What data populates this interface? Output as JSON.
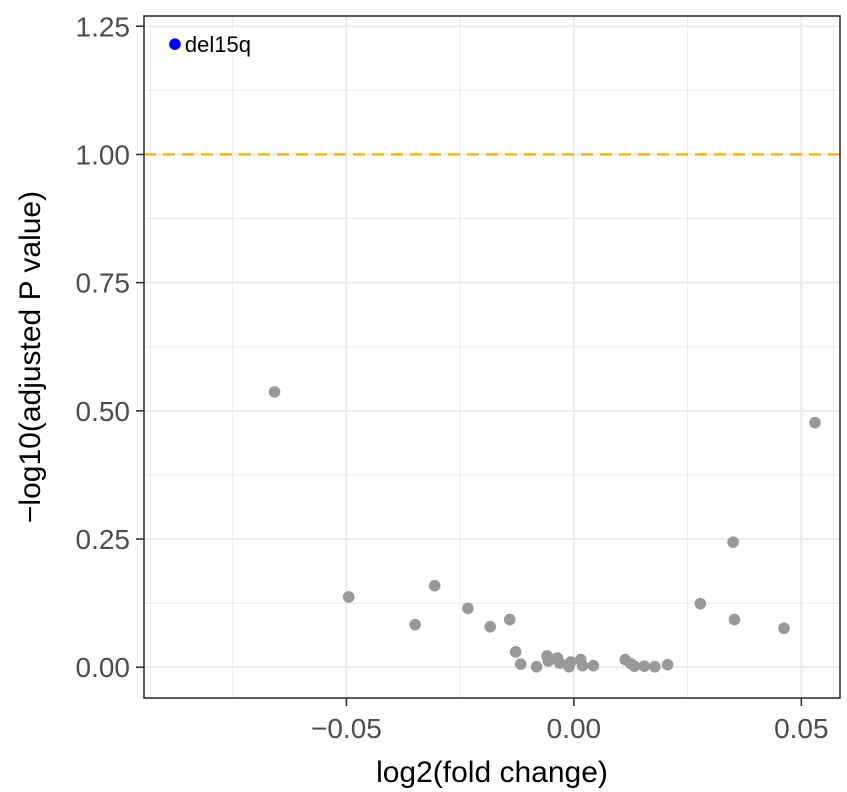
{
  "chart_data": {
    "type": "scatter",
    "title": "",
    "xlabel": "log2(fold change)",
    "ylabel": "−log10(adjusted P value)",
    "xlim": [
      -0.0945,
      0.0585
    ],
    "ylim": [
      -0.06,
      1.27
    ],
    "x_ticks": [
      -0.05,
      0.0,
      0.05
    ],
    "x_tick_labels": [
      "−0.05",
      "0.00",
      "0.05"
    ],
    "y_ticks": [
      0.0,
      0.25,
      0.5,
      0.75,
      1.0,
      1.25
    ],
    "y_tick_labels": [
      "0.00",
      "0.25",
      "0.50",
      "0.75",
      "1.00",
      "1.25"
    ],
    "grid": true,
    "threshold": {
      "y": 1.0,
      "color": "#FFA500",
      "style": "dashed"
    },
    "colors": {
      "default_point": "#999999",
      "highlight_point": "#0000FF",
      "panel_border": "#333333",
      "grid": "#EBEBEB"
    },
    "series": [
      {
        "color": "#999999",
        "points": [
          {
            "x": -0.0658,
            "y": 0.537
          },
          {
            "x": -0.0495,
            "y": 0.137
          },
          {
            "x": -0.0349,
            "y": 0.083
          },
          {
            "x": -0.0306,
            "y": 0.159
          },
          {
            "x": -0.0233,
            "y": 0.115
          },
          {
            "x": -0.0184,
            "y": 0.079
          },
          {
            "x": -0.0141,
            "y": 0.093
          },
          {
            "x": -0.0128,
            "y": 0.03
          },
          {
            "x": -0.0117,
            "y": 0.006
          },
          {
            "x": -0.0082,
            "y": 0.001
          },
          {
            "x": -0.0059,
            "y": 0.022
          },
          {
            "x": -0.0056,
            "y": 0.012
          },
          {
            "x": -0.0036,
            "y": 0.018
          },
          {
            "x": -0.0031,
            "y": 0.008
          },
          {
            "x": -0.0011,
            "y": 0.001
          },
          {
            "x": -0.0007,
            "y": 0.01
          },
          {
            "x": 0.0015,
            "y": 0.015
          },
          {
            "x": 0.0019,
            "y": 0.003
          },
          {
            "x": 0.0043,
            "y": 0.003
          },
          {
            "x": 0.0113,
            "y": 0.015
          },
          {
            "x": 0.0125,
            "y": 0.007
          },
          {
            "x": 0.0133,
            "y": 0.002
          },
          {
            "x": 0.0155,
            "y": 0.002
          },
          {
            "x": 0.0178,
            "y": 0.001
          },
          {
            "x": 0.0206,
            "y": 0.005
          },
          {
            "x": 0.0278,
            "y": 0.124
          },
          {
            "x": 0.035,
            "y": 0.244
          },
          {
            "x": 0.0353,
            "y": 0.093
          },
          {
            "x": 0.0462,
            "y": 0.076
          },
          {
            "x": 0.053,
            "y": 0.477
          }
        ]
      },
      {
        "color": "#0000FF",
        "points": [
          {
            "x": -0.0877,
            "y": 1.215,
            "label": "del15q"
          }
        ]
      }
    ]
  }
}
